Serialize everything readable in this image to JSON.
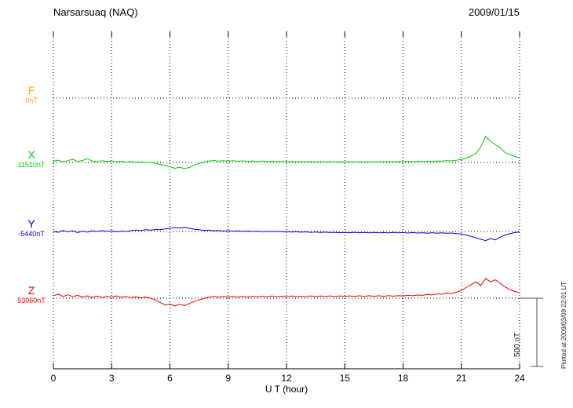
{
  "chart_data": {
    "type": "line",
    "station_title": "Narsarsuaq (NAQ)",
    "date": "2009/01/15",
    "xlabel": "U T (hour)",
    "x_ticks": [
      "0",
      "3",
      "6",
      "9",
      "12",
      "15",
      "18",
      "21",
      "24"
    ],
    "xlim": [
      0,
      24
    ],
    "x_step_hours": 0.25,
    "grid": "dotted vertical gridlines every 3 hours; dotted horizontal baseline per component",
    "legend_position": "left-margin component labels",
    "scale_bar": {
      "label": "500 nT",
      "nT": 500
    },
    "plotted_note": "Plotted at 2009/03/09 22:01 UT",
    "series": [
      {
        "name": "F",
        "color": "#ffaa00",
        "baseline_label": "0nT",
        "baseline_value_nT": 0,
        "values_rel_nT": []
      },
      {
        "name": "X",
        "color": "#00cc00",
        "baseline_label": "11510nT",
        "baseline_value_nT": 11510,
        "values_rel_nT": [
          8,
          16,
          2,
          12,
          22,
          6,
          14,
          25,
          10,
          4,
          12,
          6,
          10,
          4,
          8,
          2,
          6,
          0,
          5,
          -2,
          2,
          -6,
          -14,
          -22,
          -30,
          -42,
          -34,
          -44,
          -36,
          -20,
          -8,
          2,
          10,
          14,
          9,
          13,
          9,
          12,
          8,
          11,
          8,
          10,
          7,
          10,
          6,
          9,
          6,
          8,
          5,
          7,
          4,
          6,
          4,
          6,
          3,
          5,
          3,
          5,
          2,
          4,
          3,
          5,
          2,
          4,
          3,
          5,
          3,
          5,
          4,
          6,
          4,
          6,
          5,
          7,
          5,
          8,
          6,
          9,
          7,
          10,
          9,
          13,
          11,
          16,
          20,
          30,
          45,
          65,
          110,
          185,
          150,
          125,
          105,
          70,
          55,
          42,
          32
        ]
      },
      {
        "name": "Y",
        "color": "#0000e0",
        "baseline_label": "-5440nT",
        "baseline_value_nT": -5440,
        "values_rel_nT": [
          2,
          -6,
          6,
          -2,
          4,
          -8,
          2,
          -4,
          4,
          0,
          6,
          0,
          4,
          -2,
          3,
          0,
          6,
          10,
          7,
          12,
          9,
          14,
          12,
          18,
          22,
          28,
          24,
          30,
          22,
          16,
          12,
          8,
          10,
          5,
          7,
          3,
          5,
          2,
          4,
          1,
          3,
          0,
          2,
          -1,
          1,
          -2,
          0,
          -3,
          -1,
          -4,
          -2,
          -5,
          -3,
          -6,
          -4,
          -7,
          -5,
          -8,
          -6,
          -9,
          -7,
          -9,
          -6,
          -9,
          -7,
          -10,
          -7,
          -10,
          -8,
          -10,
          -7,
          -10,
          -8,
          -11,
          -8,
          -11,
          -9,
          -12,
          -9,
          -12,
          -10,
          -13,
          -11,
          -15,
          -18,
          -25,
          -35,
          -45,
          -55,
          -65,
          -50,
          -60,
          -40,
          -25,
          -15,
          -8,
          -4
        ]
      },
      {
        "name": "Z",
        "color": "#e80000",
        "baseline_label": "53060nT",
        "baseline_value_nT": 53060,
        "values_rel_nT": [
          18,
          28,
          12,
          24,
          10,
          20,
          8,
          16,
          6,
          14,
          5,
          12,
          8,
          16,
          6,
          12,
          4,
          10,
          2,
          8,
          0,
          -12,
          -30,
          -48,
          -42,
          -55,
          -44,
          -52,
          -38,
          -24,
          -12,
          -2,
          6,
          12,
          6,
          12,
          7,
          13,
          8,
          13,
          8,
          14,
          9,
          14,
          9,
          15,
          10,
          14,
          10,
          15,
          10,
          14,
          10,
          15,
          11,
          15,
          11,
          16,
          11,
          16,
          12,
          16,
          12,
          17,
          12,
          17,
          13,
          17,
          13,
          18,
          14,
          18,
          15,
          20,
          17,
          22,
          20,
          26,
          23,
          30,
          28,
          36,
          33,
          42,
          55,
          75,
          95,
          115,
          90,
          140,
          115,
          130,
          105,
          80,
          60,
          48,
          38
        ]
      }
    ]
  }
}
